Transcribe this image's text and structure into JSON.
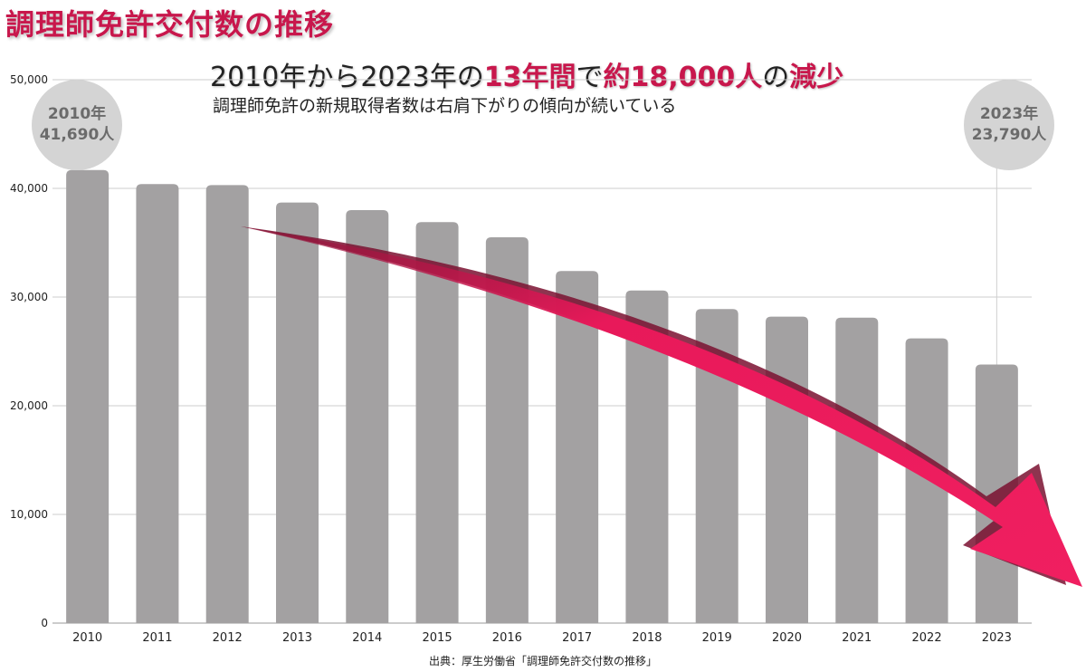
{
  "title": "調理師免許交付数の推移",
  "headline": {
    "part1": "2010年から2023年の",
    "accent1": "13年間",
    "part2": "で",
    "accent2": "約18,000人",
    "part3": "の",
    "accent3": "減少"
  },
  "subtitle": "調理師免許の新規取得者数は右肩下がりの傾向が続いている",
  "callouts": {
    "start": {
      "year": "2010年",
      "value": "41,690人"
    },
    "end": {
      "year": "2023年",
      "value": "23,790人"
    }
  },
  "source": "出典：厚生労働省「調理師免許交付数の推移」",
  "colors": {
    "accent": "#c8174c",
    "bar": "#a3a1a2",
    "arrow": "#e8195a",
    "grid": "#cccccc"
  },
  "chart_data": {
    "type": "bar",
    "categories": [
      "2010",
      "2011",
      "2012",
      "2013",
      "2014",
      "2015",
      "2016",
      "2017",
      "2018",
      "2019",
      "2020",
      "2021",
      "2022",
      "2023"
    ],
    "values": [
      41690,
      40400,
      40300,
      38700,
      38000,
      36900,
      35500,
      32400,
      30600,
      28900,
      28200,
      28100,
      26200,
      23790
    ],
    "ylim": [
      0,
      50000
    ],
    "yticks": [
      "0",
      "10,000",
      "20,000",
      "30,000",
      "40,000",
      "50,000"
    ],
    "ytick_values": [
      0,
      10000,
      20000,
      30000,
      40000,
      50000
    ],
    "grid": true,
    "legend": "none",
    "annotation": "downward trend arrow from 2012 to 2023"
  }
}
